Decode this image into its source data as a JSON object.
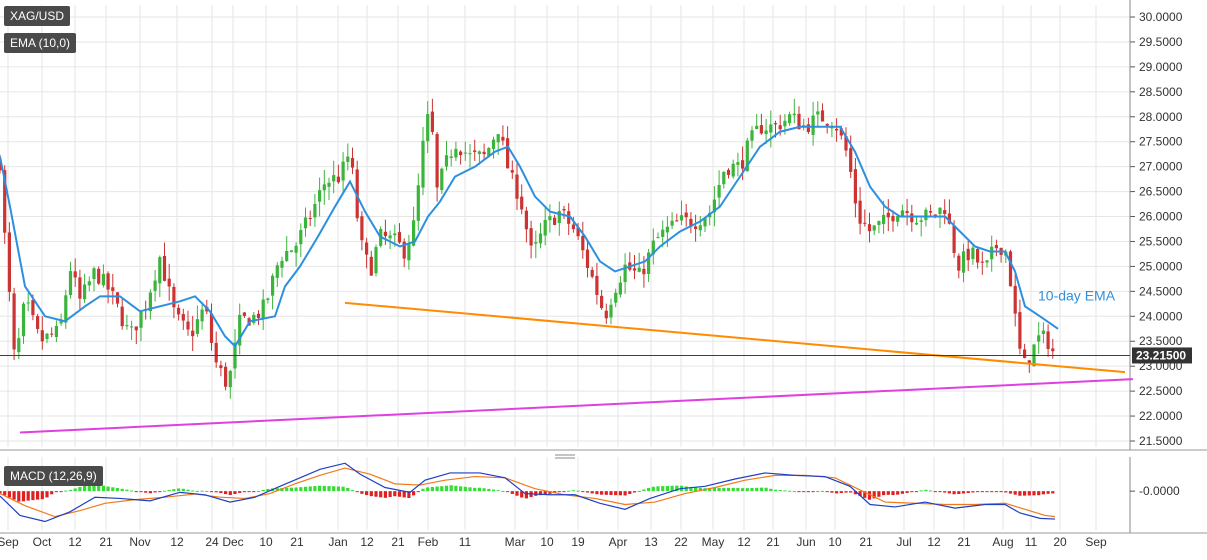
{
  "chart_data": [
    {
      "type": "candlestick",
      "symbol": "XAG/USD",
      "indicator_label": "EMA (10,0)",
      "ema_annotation": "10-day EMA",
      "last_price": "23.21500",
      "ylim": [
        21.3,
        30.2
      ],
      "y_ticks": [
        "30.0000",
        "29.5000",
        "29.0000",
        "28.5000",
        "28.0000",
        "27.5000",
        "27.0000",
        "26.5000",
        "26.0000",
        "25.5000",
        "25.0000",
        "24.5000",
        "24.0000",
        "23.5000",
        "23.0000",
        "22.5000",
        "22.0000",
        "21.5000"
      ],
      "x_tick_labels": [
        "Sep",
        "Oct",
        "12",
        "21",
        "Nov",
        "12",
        "24",
        "Dec",
        "10",
        "21",
        "Jan",
        "12",
        "21",
        "Feb",
        "11",
        "Mar",
        "10",
        "19",
        "Apr",
        "13",
        "22",
        "May",
        "12",
        "21",
        "Jun",
        "10",
        "21",
        "Jul",
        "12",
        "21",
        "Aug",
        "11",
        "20",
        "Sep"
      ],
      "close_series": [
        {
          "t": 0,
          "v": 27.1
        },
        {
          "t": 5,
          "v": 25.5
        },
        {
          "t": 15,
          "v": 23.0
        },
        {
          "t": 25,
          "v": 24.3
        },
        {
          "t": 40,
          "v": 23.5
        },
        {
          "t": 60,
          "v": 23.7
        },
        {
          "t": 70,
          "v": 25.0
        },
        {
          "t": 80,
          "v": 24.3
        },
        {
          "t": 95,
          "v": 24.9
        },
        {
          "t": 110,
          "v": 24.5
        },
        {
          "t": 130,
          "v": 23.6
        },
        {
          "t": 145,
          "v": 24.2
        },
        {
          "t": 160,
          "v": 25.2
        },
        {
          "t": 175,
          "v": 24.0
        },
        {
          "t": 190,
          "v": 23.6
        },
        {
          "t": 205,
          "v": 24.2
        },
        {
          "t": 215,
          "v": 23.1
        },
        {
          "t": 228,
          "v": 22.6
        },
        {
          "t": 240,
          "v": 23.9
        },
        {
          "t": 255,
          "v": 24.0
        },
        {
          "t": 265,
          "v": 24.2
        },
        {
          "t": 280,
          "v": 25.2
        },
        {
          "t": 295,
          "v": 25.4
        },
        {
          "t": 310,
          "v": 26.0
        },
        {
          "t": 325,
          "v": 26.7
        },
        {
          "t": 340,
          "v": 26.8
        },
        {
          "t": 350,
          "v": 27.3
        },
        {
          "t": 360,
          "v": 25.5
        },
        {
          "t": 370,
          "v": 24.9
        },
        {
          "t": 380,
          "v": 25.6
        },
        {
          "t": 395,
          "v": 25.5
        },
        {
          "t": 405,
          "v": 25.3
        },
        {
          "t": 415,
          "v": 25.9
        },
        {
          "t": 422,
          "v": 27.3
        },
        {
          "t": 430,
          "v": 28.2
        },
        {
          "t": 437,
          "v": 26.5
        },
        {
          "t": 445,
          "v": 27.0
        },
        {
          "t": 455,
          "v": 27.5
        },
        {
          "t": 470,
          "v": 27.2
        },
        {
          "t": 485,
          "v": 27.2
        },
        {
          "t": 498,
          "v": 27.8
        },
        {
          "t": 510,
          "v": 26.8
        },
        {
          "t": 520,
          "v": 26.4
        },
        {
          "t": 532,
          "v": 25.2
        },
        {
          "t": 545,
          "v": 25.8
        },
        {
          "t": 560,
          "v": 26.1
        },
        {
          "t": 575,
          "v": 25.7
        },
        {
          "t": 590,
          "v": 24.9
        },
        {
          "t": 605,
          "v": 24.0
        },
        {
          "t": 613,
          "v": 24.5
        },
        {
          "t": 625,
          "v": 25.0
        },
        {
          "t": 640,
          "v": 24.8
        },
        {
          "t": 655,
          "v": 25.5
        },
        {
          "t": 665,
          "v": 25.7
        },
        {
          "t": 680,
          "v": 25.9
        },
        {
          "t": 695,
          "v": 25.9
        },
        {
          "t": 710,
          "v": 26.1
        },
        {
          "t": 725,
          "v": 27.0
        },
        {
          "t": 740,
          "v": 27.0
        },
        {
          "t": 750,
          "v": 27.5
        },
        {
          "t": 760,
          "v": 27.8
        },
        {
          "t": 775,
          "v": 27.8
        },
        {
          "t": 790,
          "v": 28.0
        },
        {
          "t": 805,
          "v": 27.8
        },
        {
          "t": 820,
          "v": 28.0
        },
        {
          "t": 835,
          "v": 27.9
        },
        {
          "t": 848,
          "v": 27.2
        },
        {
          "t": 858,
          "v": 26.0
        },
        {
          "t": 870,
          "v": 25.7
        },
        {
          "t": 885,
          "v": 25.9
        },
        {
          "t": 900,
          "v": 26.2
        },
        {
          "t": 915,
          "v": 26.0
        },
        {
          "t": 930,
          "v": 26.0
        },
        {
          "t": 945,
          "v": 26.2
        },
        {
          "t": 958,
          "v": 25.0
        },
        {
          "t": 970,
          "v": 25.3
        },
        {
          "t": 985,
          "v": 24.9
        },
        {
          "t": 995,
          "v": 25.4
        },
        {
          "t": 1005,
          "v": 25.4
        },
        {
          "t": 1013,
          "v": 24.4
        },
        {
          "t": 1018,
          "v": 23.4
        },
        {
          "t": 1025,
          "v": 23.0
        },
        {
          "t": 1032,
          "v": 23.3
        },
        {
          "t": 1040,
          "v": 23.6
        },
        {
          "t": 1048,
          "v": 23.5
        },
        {
          "t": 1055,
          "v": 23.2
        }
      ],
      "ema_series": [
        {
          "t": 0,
          "v": 27.2
        },
        {
          "t": 10,
          "v": 26.2
        },
        {
          "t": 25,
          "v": 24.6
        },
        {
          "t": 45,
          "v": 24.0
        },
        {
          "t": 65,
          "v": 23.9
        },
        {
          "t": 85,
          "v": 24.2
        },
        {
          "t": 100,
          "v": 24.4
        },
        {
          "t": 120,
          "v": 24.4
        },
        {
          "t": 140,
          "v": 24.1
        },
        {
          "t": 160,
          "v": 24.2
        },
        {
          "t": 180,
          "v": 24.3
        },
        {
          "t": 195,
          "v": 24.4
        },
        {
          "t": 210,
          "v": 24.1
        },
        {
          "t": 225,
          "v": 23.6
        },
        {
          "t": 235,
          "v": 23.4
        },
        {
          "t": 250,
          "v": 23.9
        },
        {
          "t": 275,
          "v": 24.0
        },
        {
          "t": 285,
          "v": 24.6
        },
        {
          "t": 300,
          "v": 25.0
        },
        {
          "t": 318,
          "v": 25.6
        },
        {
          "t": 335,
          "v": 26.2
        },
        {
          "t": 350,
          "v": 26.7
        },
        {
          "t": 365,
          "v": 26.1
        },
        {
          "t": 380,
          "v": 25.6
        },
        {
          "t": 400,
          "v": 25.4
        },
        {
          "t": 415,
          "v": 25.5
        },
        {
          "t": 428,
          "v": 26.0
        },
        {
          "t": 440,
          "v": 26.3
        },
        {
          "t": 455,
          "v": 26.8
        },
        {
          "t": 475,
          "v": 27.0
        },
        {
          "t": 495,
          "v": 27.3
        },
        {
          "t": 508,
          "v": 27.4
        },
        {
          "t": 520,
          "v": 27.0
        },
        {
          "t": 535,
          "v": 26.4
        },
        {
          "t": 550,
          "v": 26.1
        },
        {
          "t": 570,
          "v": 26.0
        },
        {
          "t": 585,
          "v": 25.6
        },
        {
          "t": 600,
          "v": 25.1
        },
        {
          "t": 615,
          "v": 24.9
        },
        {
          "t": 630,
          "v": 25.0
        },
        {
          "t": 645,
          "v": 25.1
        },
        {
          "t": 660,
          "v": 25.4
        },
        {
          "t": 680,
          "v": 25.7
        },
        {
          "t": 700,
          "v": 25.9
        },
        {
          "t": 720,
          "v": 26.2
        },
        {
          "t": 740,
          "v": 26.8
        },
        {
          "t": 760,
          "v": 27.4
        },
        {
          "t": 780,
          "v": 27.7
        },
        {
          "t": 800,
          "v": 27.8
        },
        {
          "t": 820,
          "v": 27.8
        },
        {
          "t": 840,
          "v": 27.8
        },
        {
          "t": 855,
          "v": 27.3
        },
        {
          "t": 870,
          "v": 26.6
        },
        {
          "t": 885,
          "v": 26.2
        },
        {
          "t": 900,
          "v": 26.0
        },
        {
          "t": 920,
          "v": 26.0
        },
        {
          "t": 945,
          "v": 26.0
        },
        {
          "t": 960,
          "v": 25.7
        },
        {
          "t": 975,
          "v": 25.4
        },
        {
          "t": 990,
          "v": 25.3
        },
        {
          "t": 1005,
          "v": 25.3
        },
        {
          "t": 1015,
          "v": 24.9
        },
        {
          "t": 1025,
          "v": 24.2
        },
        {
          "t": 1040,
          "v": 24.0
        },
        {
          "t": 1058,
          "v": 23.75
        }
      ],
      "trendlines": [
        {
          "color": "#ff8c00",
          "from": {
            "t": 345,
            "v": 24.27
          },
          "to": {
            "t": 1125,
            "v": 22.88
          }
        },
        {
          "color": "#e040e0",
          "from": {
            "t": 20,
            "v": 21.67
          },
          "to": {
            "t": 1133,
            "v": 22.74
          }
        }
      ]
    },
    {
      "type": "macd",
      "label": "MACD (12,26,9)",
      "y_tick": "-0.0000",
      "ylim": [
        -1.6,
        1.2
      ],
      "zero": 0.0,
      "macd_series": [
        {
          "t": 0,
          "v": -0.2
        },
        {
          "t": 20,
          "v": -1.0
        },
        {
          "t": 45,
          "v": -1.25
        },
        {
          "t": 70,
          "v": -0.85
        },
        {
          "t": 95,
          "v": -0.25
        },
        {
          "t": 120,
          "v": -0.3
        },
        {
          "t": 150,
          "v": -0.4
        },
        {
          "t": 180,
          "v": -0.05
        },
        {
          "t": 205,
          "v": -0.15
        },
        {
          "t": 230,
          "v": -0.45
        },
        {
          "t": 255,
          "v": -0.25
        },
        {
          "t": 280,
          "v": 0.2
        },
        {
          "t": 300,
          "v": 0.55
        },
        {
          "t": 320,
          "v": 0.9
        },
        {
          "t": 345,
          "v": 1.15
        },
        {
          "t": 360,
          "v": 0.7
        },
        {
          "t": 385,
          "v": 0.15
        },
        {
          "t": 410,
          "v": -0.05
        },
        {
          "t": 425,
          "v": 0.45
        },
        {
          "t": 450,
          "v": 0.75
        },
        {
          "t": 480,
          "v": 0.75
        },
        {
          "t": 505,
          "v": 0.55
        },
        {
          "t": 525,
          "v": -0.1
        },
        {
          "t": 550,
          "v": -0.15
        },
        {
          "t": 575,
          "v": -0.15
        },
        {
          "t": 600,
          "v": -0.5
        },
        {
          "t": 625,
          "v": -0.75
        },
        {
          "t": 650,
          "v": -0.3
        },
        {
          "t": 680,
          "v": 0.1
        },
        {
          "t": 705,
          "v": 0.2
        },
        {
          "t": 735,
          "v": 0.5
        },
        {
          "t": 765,
          "v": 0.75
        },
        {
          "t": 795,
          "v": 0.65
        },
        {
          "t": 825,
          "v": 0.6
        },
        {
          "t": 850,
          "v": 0.2
        },
        {
          "t": 870,
          "v": -0.55
        },
        {
          "t": 895,
          "v": -0.65
        },
        {
          "t": 925,
          "v": -0.45
        },
        {
          "t": 955,
          "v": -0.7
        },
        {
          "t": 985,
          "v": -0.55
        },
        {
          "t": 1005,
          "v": -0.55
        },
        {
          "t": 1020,
          "v": -0.9
        },
        {
          "t": 1040,
          "v": -1.12
        },
        {
          "t": 1055,
          "v": -1.15
        }
      ],
      "signal_series": [
        {
          "t": 0,
          "v": -0.1
        },
        {
          "t": 25,
          "v": -0.6
        },
        {
          "t": 55,
          "v": -1.05
        },
        {
          "t": 80,
          "v": -0.8
        },
        {
          "t": 105,
          "v": -0.5
        },
        {
          "t": 135,
          "v": -0.35
        },
        {
          "t": 165,
          "v": -0.25
        },
        {
          "t": 195,
          "v": -0.12
        },
        {
          "t": 220,
          "v": -0.25
        },
        {
          "t": 245,
          "v": -0.3
        },
        {
          "t": 270,
          "v": -0.1
        },
        {
          "t": 295,
          "v": 0.3
        },
        {
          "t": 320,
          "v": 0.65
        },
        {
          "t": 345,
          "v": 0.95
        },
        {
          "t": 370,
          "v": 0.7
        },
        {
          "t": 395,
          "v": 0.3
        },
        {
          "t": 420,
          "v": 0.25
        },
        {
          "t": 445,
          "v": 0.45
        },
        {
          "t": 475,
          "v": 0.6
        },
        {
          "t": 505,
          "v": 0.55
        },
        {
          "t": 535,
          "v": 0.1
        },
        {
          "t": 565,
          "v": -0.15
        },
        {
          "t": 595,
          "v": -0.3
        },
        {
          "t": 625,
          "v": -0.55
        },
        {
          "t": 655,
          "v": -0.45
        },
        {
          "t": 685,
          "v": -0.1
        },
        {
          "t": 715,
          "v": 0.15
        },
        {
          "t": 745,
          "v": 0.45
        },
        {
          "t": 775,
          "v": 0.65
        },
        {
          "t": 805,
          "v": 0.65
        },
        {
          "t": 835,
          "v": 0.55
        },
        {
          "t": 860,
          "v": 0.05
        },
        {
          "t": 885,
          "v": -0.45
        },
        {
          "t": 915,
          "v": -0.5
        },
        {
          "t": 945,
          "v": -0.55
        },
        {
          "t": 975,
          "v": -0.55
        },
        {
          "t": 1005,
          "v": -0.5
        },
        {
          "t": 1025,
          "v": -0.75
        },
        {
          "t": 1045,
          "v": -1.0
        },
        {
          "t": 1055,
          "v": -1.05
        }
      ]
    }
  ],
  "colors": {
    "candle_up": "#3bb43b",
    "candle_down": "#cc3333",
    "ema": "#2c8fe0",
    "macd_line": "#1f3fc4",
    "signal_line": "#f07a1a",
    "hist_up": "#33dd33",
    "hist_down": "#e02020",
    "price_label_bg": "#333333"
  }
}
